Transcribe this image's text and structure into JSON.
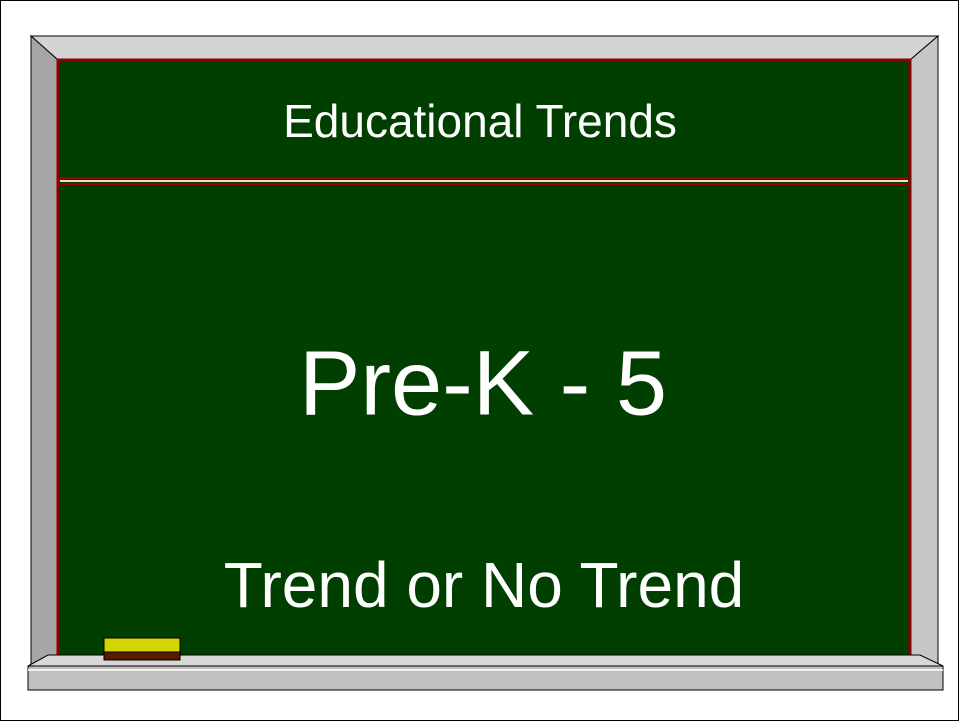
{
  "board": {
    "title": "Educational Trends",
    "heading": "Pre-K - 5",
    "subtitle": "Trend or No Trend"
  }
}
